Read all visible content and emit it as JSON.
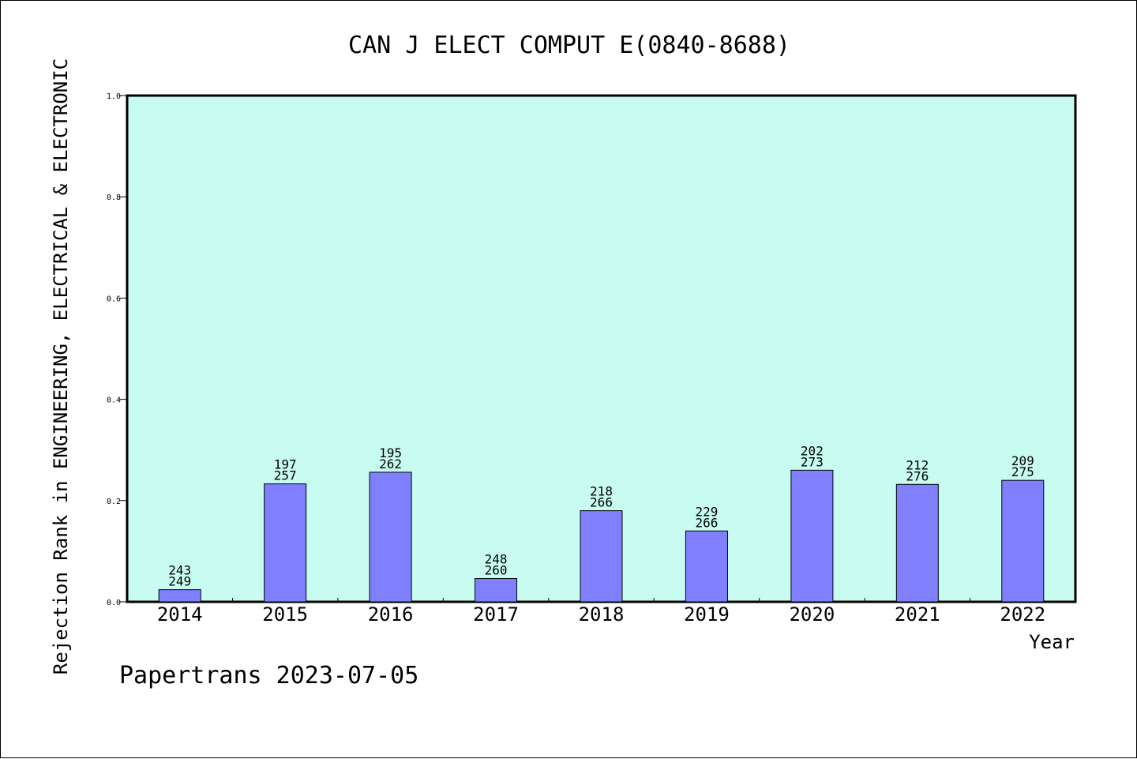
{
  "chart_data": {
    "type": "bar",
    "title": "CAN J ELECT COMPUT E(0840-8688)",
    "xlabel": "Year",
    "ylabel": "Rejection Rank in ENGINEERING, ELECTRICAL & ELECTRONIC",
    "ylim": [
      0,
      1.0
    ],
    "yticks": [
      "0.0",
      "0.2",
      "0.4",
      "0.6",
      "0.8",
      "1.0"
    ],
    "categories": [
      "2014",
      "2015",
      "2016",
      "2017",
      "2018",
      "2019",
      "2020",
      "2021",
      "2022"
    ],
    "values": [
      0.024,
      0.233,
      0.256,
      0.046,
      0.18,
      0.14,
      0.26,
      0.232,
      0.24
    ],
    "rank_labels": [
      "243",
      "197",
      "195",
      "248",
      "218",
      "229",
      "202",
      "212",
      "209"
    ],
    "total_labels": [
      "249",
      "257",
      "262",
      "260",
      "266",
      "266",
      "273",
      "276",
      "275"
    ],
    "colors": {
      "plot_bg": "#c8fcf0",
      "bar": "#8080ff"
    },
    "grid": false,
    "legend": "none"
  },
  "footer": {
    "watermark": "Papertrans 2023-07-05"
  }
}
